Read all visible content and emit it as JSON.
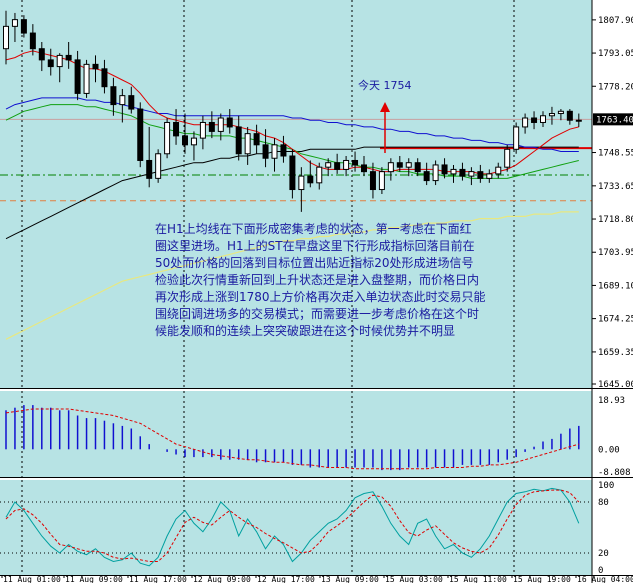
{
  "colors": {
    "background": "#b7e3e4",
    "candle": "#000000",
    "ma_red": "#e00000",
    "ma_blue": "#1010d0",
    "ma_green": "#10a010",
    "ma_black": "#000000",
    "ma_yellow": "#e8e880",
    "annotation_text": "#1a1aa0",
    "macd_bar": "#1010d0",
    "signal": "#e00000",
    "stoch_main": "#00a0a0",
    "stoch_signal": "#e00000",
    "level_green": "#008000",
    "level_orange": "#e08040",
    "arrow": "#e00000",
    "current_price_box": "#000000"
  },
  "price_axis": {
    "labels": [
      "1807.90",
      "1793.05",
      "1778.20",
      "1763.40",
      "1748.55",
      "1733.65",
      "1718.80",
      "1703.95",
      "1689.10",
      "1674.25",
      "1659.35",
      "1645.00"
    ],
    "current_price": "1763.40"
  },
  "macd_axis": {
    "labels": [
      "18.93",
      "0.00",
      "-8.808"
    ]
  },
  "stoch_axis": {
    "labels": [
      "100",
      "80",
      "20",
      "0"
    ]
  },
  "time_axis": {
    "labels": [
      "11 Aug 01:00",
      "11 Aug 09:00",
      "11 Aug 17:00",
      "12 Aug 09:00",
      "12 Aug 17:00",
      "13 Aug 09:00",
      "15 Aug 03:00",
      "15 Aug 11:00",
      "15 Aug 19:00",
      "16 Aug 04:00"
    ]
  },
  "annotation": {
    "today_label": "今天  1754",
    "lines": [
      "在H1上均线在下面形成密集考虑的状态，第一考虑在下面红",
      "圈这里进场。H1上的ST在早盘这里下行形成指标回落目前在",
      "50处而价格的回落到目标位置出贴近指标20处形成进场信号",
      "检验此次行情重新回到上升状态还是进入盘整期，而价格日内",
      "再次形成上涨到1780上方价格再次走入单边状态此时交易只能",
      "围绕回调进场多的交易模式；而需要进一步考虑价格在这个时",
      "候能发顺和的连续上突突破跟进在这个时候优势并不明显"
    ]
  },
  "chart_data": {
    "type": "candlestick",
    "symbol_timeframe": "",
    "ylim": [
      1645.0,
      1815.0
    ],
    "horizontal_levels": {
      "green_dashdot": 1738.5,
      "orange_dashed": 1727.0,
      "red_solid": 1750.5
    },
    "candles": [
      {
        "o": 1795,
        "h": 1812,
        "l": 1788,
        "c": 1805
      },
      {
        "o": 1805,
        "h": 1811,
        "l": 1798,
        "c": 1808
      },
      {
        "o": 1808,
        "h": 1810,
        "l": 1800,
        "c": 1802
      },
      {
        "o": 1802,
        "h": 1806,
        "l": 1792,
        "c": 1795
      },
      {
        "o": 1795,
        "h": 1798,
        "l": 1785,
        "c": 1790
      },
      {
        "o": 1790,
        "h": 1795,
        "l": 1783,
        "c": 1787
      },
      {
        "o": 1787,
        "h": 1793,
        "l": 1780,
        "c": 1792
      },
      {
        "o": 1792,
        "h": 1798,
        "l": 1786,
        "c": 1790
      },
      {
        "o": 1790,
        "h": 1794,
        "l": 1772,
        "c": 1775
      },
      {
        "o": 1775,
        "h": 1790,
        "l": 1773,
        "c": 1788
      },
      {
        "o": 1788,
        "h": 1792,
        "l": 1780,
        "c": 1786
      },
      {
        "o": 1786,
        "h": 1790,
        "l": 1775,
        "c": 1778
      },
      {
        "o": 1778,
        "h": 1782,
        "l": 1765,
        "c": 1770
      },
      {
        "o": 1770,
        "h": 1777,
        "l": 1762,
        "c": 1774
      },
      {
        "o": 1774,
        "h": 1778,
        "l": 1766,
        "c": 1768
      },
      {
        "o": 1768,
        "h": 1771,
        "l": 1742,
        "c": 1745
      },
      {
        "o": 1745,
        "h": 1760,
        "l": 1733,
        "c": 1737
      },
      {
        "o": 1737,
        "h": 1750,
        "l": 1735,
        "c": 1748
      },
      {
        "o": 1748,
        "h": 1764,
        "l": 1746,
        "c": 1762
      },
      {
        "o": 1762,
        "h": 1768,
        "l": 1752,
        "c": 1756
      },
      {
        "o": 1756,
        "h": 1766,
        "l": 1748,
        "c": 1752
      },
      {
        "o": 1752,
        "h": 1758,
        "l": 1745,
        "c": 1755
      },
      {
        "o": 1755,
        "h": 1765,
        "l": 1750,
        "c": 1762
      },
      {
        "o": 1762,
        "h": 1767,
        "l": 1755,
        "c": 1758
      },
      {
        "o": 1758,
        "h": 1766,
        "l": 1754,
        "c": 1764
      },
      {
        "o": 1764,
        "h": 1768,
        "l": 1757,
        "c": 1760
      },
      {
        "o": 1760,
        "h": 1765,
        "l": 1745,
        "c": 1748
      },
      {
        "o": 1748,
        "h": 1760,
        "l": 1743,
        "c": 1757
      },
      {
        "o": 1757,
        "h": 1761,
        "l": 1748,
        "c": 1752
      },
      {
        "o": 1752,
        "h": 1759,
        "l": 1742,
        "c": 1746
      },
      {
        "o": 1746,
        "h": 1755,
        "l": 1740,
        "c": 1752
      },
      {
        "o": 1752,
        "h": 1756,
        "l": 1744,
        "c": 1747
      },
      {
        "o": 1747,
        "h": 1750,
        "l": 1728,
        "c": 1732
      },
      {
        "o": 1732,
        "h": 1742,
        "l": 1722,
        "c": 1738
      },
      {
        "o": 1738,
        "h": 1745,
        "l": 1733,
        "c": 1735
      },
      {
        "o": 1735,
        "h": 1744,
        "l": 1732,
        "c": 1742
      },
      {
        "o": 1742,
        "h": 1746,
        "l": 1738,
        "c": 1744
      },
      {
        "o": 1744,
        "h": 1748,
        "l": 1739,
        "c": 1741
      },
      {
        "o": 1741,
        "h": 1747,
        "l": 1738,
        "c": 1745
      },
      {
        "o": 1745,
        "h": 1749,
        "l": 1740,
        "c": 1743
      },
      {
        "o": 1743,
        "h": 1747,
        "l": 1738,
        "c": 1740
      },
      {
        "o": 1740,
        "h": 1744,
        "l": 1728,
        "c": 1732
      },
      {
        "o": 1732,
        "h": 1742,
        "l": 1730,
        "c": 1740
      },
      {
        "o": 1740,
        "h": 1746,
        "l": 1736,
        "c": 1744
      },
      {
        "o": 1744,
        "h": 1747,
        "l": 1740,
        "c": 1742
      },
      {
        "o": 1742,
        "h": 1746,
        "l": 1738,
        "c": 1744
      },
      {
        "o": 1744,
        "h": 1746,
        "l": 1738,
        "c": 1740
      },
      {
        "o": 1740,
        "h": 1744,
        "l": 1734,
        "c": 1736
      },
      {
        "o": 1736,
        "h": 1745,
        "l": 1734,
        "c": 1743
      },
      {
        "o": 1743,
        "h": 1746,
        "l": 1737,
        "c": 1739
      },
      {
        "o": 1739,
        "h": 1743,
        "l": 1735,
        "c": 1741
      },
      {
        "o": 1741,
        "h": 1744,
        "l": 1736,
        "c": 1738
      },
      {
        "o": 1738,
        "h": 1742,
        "l": 1734,
        "c": 1740
      },
      {
        "o": 1740,
        "h": 1743,
        "l": 1735,
        "c": 1737
      },
      {
        "o": 1737,
        "h": 1741,
        "l": 1735,
        "c": 1739
      },
      {
        "o": 1739,
        "h": 1744,
        "l": 1737,
        "c": 1742
      },
      {
        "o": 1742,
        "h": 1752,
        "l": 1740,
        "c": 1750
      },
      {
        "o": 1750,
        "h": 1762,
        "l": 1748,
        "c": 1760
      },
      {
        "o": 1760,
        "h": 1766,
        "l": 1757,
        "c": 1764
      },
      {
        "o": 1764,
        "h": 1767,
        "l": 1759,
        "c": 1762
      },
      {
        "o": 1762,
        "h": 1767,
        "l": 1760,
        "c": 1765
      },
      {
        "o": 1765,
        "h": 1769,
        "l": 1761,
        "c": 1766
      },
      {
        "o": 1766,
        "h": 1768,
        "l": 1763,
        "c": 1767
      },
      {
        "o": 1767,
        "h": 1768,
        "l": 1761,
        "c": 1763
      },
      {
        "o": 1763,
        "h": 1766,
        "l": 1760,
        "c": 1763
      }
    ],
    "ma_red": [
      1790,
      1791,
      1793,
      1794,
      1793,
      1792,
      1791,
      1790,
      1788,
      1786,
      1786,
      1785,
      1783,
      1781,
      1779,
      1775,
      1770,
      1766,
      1764,
      1763,
      1762,
      1761,
      1761,
      1761,
      1761,
      1761,
      1760,
      1759,
      1758,
      1756,
      1755,
      1753,
      1750,
      1747,
      1744,
      1742,
      1741,
      1741,
      1741,
      1742,
      1742,
      1741,
      1740,
      1740,
      1741,
      1741,
      1741,
      1741,
      1741,
      1740,
      1740,
      1740,
      1740,
      1739,
      1739,
      1740,
      1741,
      1743,
      1746,
      1749,
      1752,
      1755,
      1757,
      1759,
      1760
    ],
    "ma_blue": [
      1768,
      1770,
      1771,
      1772,
      1773,
      1773,
      1773,
      1773,
      1773,
      1772,
      1772,
      1771,
      1771,
      1770,
      1769,
      1768,
      1767,
      1766,
      1766,
      1765,
      1765,
      1765,
      1765,
      1765,
      1765,
      1765,
      1765,
      1765,
      1765,
      1765,
      1765,
      1765,
      1764,
      1764,
      1763,
      1763,
      1762,
      1762,
      1761,
      1761,
      1760,
      1760,
      1759,
      1759,
      1758,
      1758,
      1757,
      1757,
      1756,
      1756,
      1755,
      1755,
      1754,
      1754,
      1753,
      1753,
      1752,
      1752,
      1751,
      1751,
      1750,
      1750,
      1749,
      1749,
      1749
    ],
    "ma_green": [
      1763,
      1765,
      1767,
      1768,
      1769,
      1770,
      1770,
      1770,
      1770,
      1769,
      1769,
      1768,
      1767,
      1766,
      1765,
      1763,
      1761,
      1760,
      1759,
      1758,
      1757,
      1757,
      1756,
      1756,
      1756,
      1756,
      1755,
      1755,
      1754,
      1753,
      1752,
      1751,
      1750,
      1748,
      1747,
      1746,
      1745,
      1744,
      1744,
      1743,
      1742,
      1742,
      1741,
      1741,
      1740,
      1740,
      1739,
      1739,
      1739,
      1738,
      1738,
      1738,
      1737,
      1737,
      1737,
      1737,
      1737,
      1738,
      1739,
      1740,
      1741,
      1742,
      1743,
      1744,
      1745
    ],
    "ma_black": [
      1710,
      1712,
      1714,
      1716,
      1718,
      1720,
      1722,
      1724,
      1726,
      1728,
      1730,
      1732,
      1734,
      1736,
      1737,
      1738,
      1739,
      1740,
      1741,
      1742,
      1743,
      1744,
      1744,
      1745,
      1746,
      1746,
      1747,
      1747,
      1748,
      1748,
      1749,
      1749,
      1749,
      1749,
      1750,
      1750,
      1750,
      1750,
      1750,
      1750,
      1751,
      1751,
      1751,
      1751,
      1751,
      1751,
      1751,
      1751,
      1751,
      1751,
      1751,
      1751,
      1751,
      1751,
      1751,
      1751,
      1751,
      1751,
      1751,
      1751,
      1751,
      1751,
      1751,
      1751,
      1751
    ],
    "ma_yellow": [
      1665,
      1667,
      1669,
      1671,
      1673,
      1675,
      1677,
      1679,
      1681,
      1683,
      1685,
      1687,
      1689,
      1691,
      1692,
      1693,
      1694,
      1695,
      1696,
      1697,
      1698,
      1699,
      1700,
      1701,
      1702,
      1703,
      1704,
      1705,
      1706,
      1707,
      1708,
      1709,
      1709,
      1710,
      1710,
      1711,
      1711,
      1712,
      1712,
      1713,
      1713,
      1714,
      1714,
      1715,
      1715,
      1716,
      1716,
      1717,
      1717,
      1717,
      1718,
      1718,
      1718,
      1719,
      1719,
      1719,
      1720,
      1720,
      1720,
      1721,
      1721,
      1721,
      1722,
      1722,
      1722
    ],
    "macd": {
      "ylim": [
        -9.5,
        20.5
      ],
      "bars": [
        15,
        16,
        17,
        17,
        16,
        16,
        15,
        15,
        13,
        12,
        12,
        11,
        10,
        9,
        8,
        5,
        2,
        0,
        -1,
        -2,
        -3,
        -3,
        -3,
        -3,
        -4,
        -4,
        -4,
        -4,
        -5,
        -5,
        -5,
        -5,
        -6,
        -6,
        -7,
        -7,
        -7,
        -7,
        -7,
        -7,
        -7,
        -7,
        -8,
        -8,
        -8,
        -7,
        -7,
        -7,
        -7,
        -7,
        -7,
        -6,
        -6,
        -6,
        -6,
        -5,
        -4,
        -3,
        -1,
        1,
        3,
        4,
        6,
        8,
        9
      ],
      "signal": [
        14,
        14.5,
        15,
        15.5,
        15.5,
        15.5,
        15.5,
        15.5,
        15,
        14.5,
        14,
        13.5,
        13,
        12,
        11,
        10,
        8,
        6,
        4,
        2,
        1,
        0,
        -1,
        -2,
        -2.5,
        -3,
        -3.5,
        -4,
        -4,
        -4.5,
        -5,
        -5,
        -5.5,
        -6,
        -6,
        -6.5,
        -7,
        -7,
        -7,
        -7.5,
        -7.5,
        -7.5,
        -7.5,
        -7.5,
        -7.5,
        -7.5,
        -7.5,
        -7.5,
        -7,
        -7,
        -7,
        -7,
        -6.5,
        -6.5,
        -6,
        -6,
        -5.5,
        -5,
        -4,
        -3,
        -2,
        -1,
        0,
        1,
        2
      ]
    },
    "stochastic": {
      "ylim": [
        0,
        100
      ],
      "main": [
        62,
        80,
        70,
        55,
        40,
        28,
        20,
        30,
        22,
        18,
        25,
        15,
        10,
        12,
        20,
        8,
        5,
        15,
        40,
        60,
        70,
        55,
        45,
        60,
        80,
        70,
        40,
        60,
        45,
        25,
        40,
        30,
        10,
        20,
        35,
        45,
        55,
        60,
        70,
        85,
        90,
        92,
        75,
        55,
        40,
        30,
        55,
        60,
        40,
        25,
        30,
        20,
        15,
        25,
        40,
        60,
        80,
        90,
        92,
        95,
        93,
        96,
        94,
        80,
        55
      ],
      "signal": [
        60,
        70,
        72,
        65,
        55,
        42,
        30,
        28,
        25,
        22,
        22,
        20,
        15,
        13,
        14,
        12,
        10,
        10,
        20,
        38,
        56,
        62,
        56,
        53,
        62,
        70,
        62,
        55,
        50,
        43,
        37,
        32,
        26,
        20,
        22,
        32,
        45,
        52,
        60,
        70,
        80,
        88,
        86,
        75,
        58,
        44,
        40,
        47,
        52,
        42,
        32,
        26,
        22,
        20,
        26,
        41,
        60,
        77,
        88,
        92,
        93,
        94,
        94,
        91,
        80
      ]
    }
  }
}
